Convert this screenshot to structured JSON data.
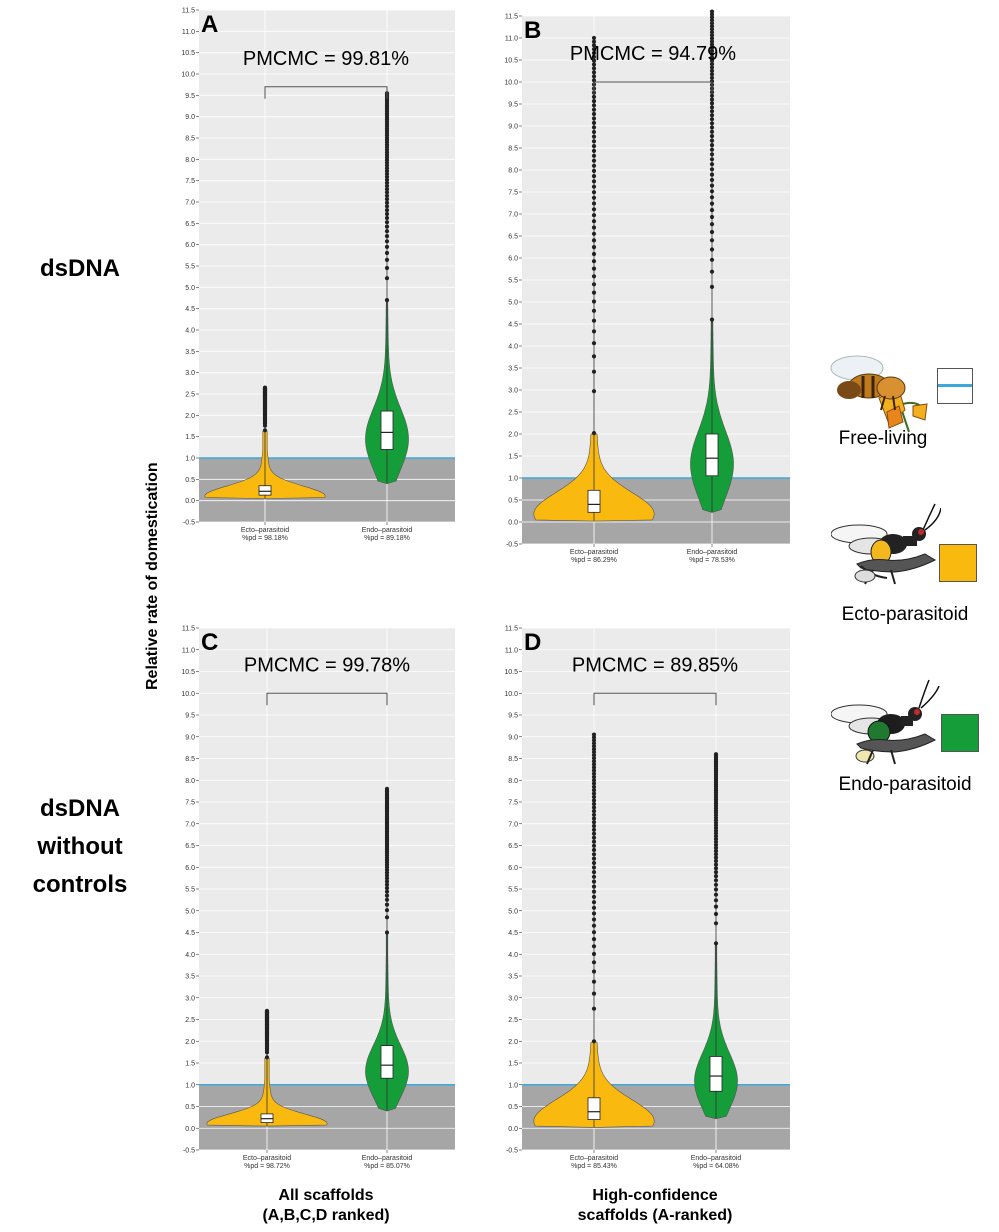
{
  "row_labels": {
    "top": "dsDNA",
    "bottom_lines": [
      "dsDNA",
      "without",
      "controls"
    ]
  },
  "y_axis_label": "Relative rate of domestication",
  "column_labels": {
    "left_lines": [
      "All scaffolds",
      "(A,B,C,D ranked)"
    ],
    "right_lines": [
      "High-confidence",
      "scaffolds (A-ranked)"
    ]
  },
  "legend": [
    {
      "label": "Free-living",
      "color": "#3da9db",
      "icon": "bee-on-flower-illustration"
    },
    {
      "label": "Ecto-parasitoid",
      "color": "#f9b90f",
      "icon": "ecto-parasitoid-wasp-illustration"
    },
    {
      "label": "Endo-parasitoid",
      "color": "#159d3a",
      "icon": "endo-parasitoid-wasp-illustration"
    }
  ],
  "chart_data": [
    {
      "panel": "A",
      "type": "violin",
      "ylim": [
        -0.5,
        11.5
      ],
      "annotation": "PMCMC = 99.81%",
      "reference_line": 1.0,
      "shaded_region": [
        -0.5,
        1.0
      ],
      "grid": true,
      "categories": [
        "Ecto–parasitoid",
        "Endo–parasitoid"
      ],
      "category_sublabels": [
        "%pd = 98.18%",
        "%pd = 89.18%"
      ],
      "series": [
        {
          "name": "Ecto–parasitoid",
          "color": "#f9b90f",
          "median": 0.22,
          "q1": 0.13,
          "q3": 0.35,
          "min": 0.05,
          "max": 2.65
        },
        {
          "name": "Endo–parasitoid",
          "color": "#159d3a",
          "median": 1.6,
          "q1": 1.2,
          "q3": 2.1,
          "min": 0.4,
          "max": 9.55
        }
      ]
    },
    {
      "panel": "B",
      "type": "violin",
      "ylim": [
        -0.5,
        11.5
      ],
      "annotation": "PMCMC = 94.79%",
      "reference_line": 1.0,
      "shaded_region": [
        -0.5,
        1.0
      ],
      "grid": true,
      "categories": [
        "Ecto–parasitoid",
        "Endo–parasitoid"
      ],
      "category_sublabels": [
        "%pd = 86.29%",
        "%pd = 78.53%"
      ],
      "series": [
        {
          "name": "Ecto–parasitoid",
          "color": "#f9b90f",
          "median": 0.4,
          "q1": 0.22,
          "q3": 0.72,
          "min": 0.02,
          "max": 11.0
        },
        {
          "name": "Endo–parasitoid",
          "color": "#159d3a",
          "median": 1.45,
          "q1": 1.05,
          "q3": 2.0,
          "min": 0.22,
          "max": 11.6
        }
      ]
    },
    {
      "panel": "C",
      "type": "violin",
      "ylim": [
        -0.5,
        11.5
      ],
      "annotation": "PMCMC = 99.78%",
      "reference_line": 1.0,
      "shaded_region": [
        -0.5,
        1.0
      ],
      "grid": true,
      "categories": [
        "Ecto–parasitoid",
        "Endo–parasitoid"
      ],
      "category_sublabels": [
        "%pd = 98.72%",
        "%pd = 85.07%"
      ],
      "series": [
        {
          "name": "Ecto–parasitoid",
          "color": "#f9b90f",
          "median": 0.22,
          "q1": 0.13,
          "q3": 0.33,
          "min": 0.05,
          "max": 2.7
        },
        {
          "name": "Endo–parasitoid",
          "color": "#159d3a",
          "median": 1.45,
          "q1": 1.15,
          "q3": 1.9,
          "min": 0.4,
          "max": 7.8
        }
      ]
    },
    {
      "panel": "D",
      "type": "violin",
      "ylim": [
        -0.5,
        11.5
      ],
      "annotation": "PMCMC = 89.85%",
      "reference_line": 1.0,
      "shaded_region": [
        -0.5,
        1.0
      ],
      "grid": true,
      "categories": [
        "Ecto–parasitoid",
        "Endo–parasitoid"
      ],
      "category_sublabels": [
        "%pd = 85.43%",
        "%pd = 64.08%"
      ],
      "series": [
        {
          "name": "Ecto–parasitoid",
          "color": "#f9b90f",
          "median": 0.38,
          "q1": 0.2,
          "q3": 0.7,
          "min": 0.02,
          "max": 9.05
        },
        {
          "name": "Endo–parasitoid",
          "color": "#159d3a",
          "median": 1.2,
          "q1": 0.85,
          "q3": 1.65,
          "min": 0.22,
          "max": 8.6
        }
      ]
    }
  ]
}
